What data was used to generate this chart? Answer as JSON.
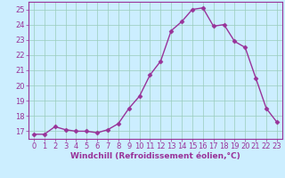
{
  "x": [
    0,
    1,
    2,
    3,
    4,
    5,
    6,
    7,
    8,
    9,
    10,
    11,
    12,
    13,
    14,
    15,
    16,
    17,
    18,
    19,
    20,
    21,
    22,
    23
  ],
  "y": [
    16.8,
    16.8,
    17.3,
    17.1,
    17.0,
    17.0,
    16.9,
    17.1,
    17.5,
    18.5,
    19.3,
    20.7,
    21.6,
    23.6,
    24.2,
    25.0,
    25.1,
    23.9,
    24.0,
    22.9,
    22.5,
    20.5,
    18.5,
    17.6
  ],
  "line_color": "#993399",
  "marker": "D",
  "markersize": 2.5,
  "linewidth": 1.0,
  "bg_color": "#cceeff",
  "grid_color": "#99ccbb",
  "xlabel": "Windchill (Refroidissement éolien,°C)",
  "xlim": [
    -0.5,
    23.5
  ],
  "ylim": [
    16.5,
    25.5
  ],
  "yticks": [
    17,
    18,
    19,
    20,
    21,
    22,
    23,
    24,
    25
  ],
  "xticks": [
    0,
    1,
    2,
    3,
    4,
    5,
    6,
    7,
    8,
    9,
    10,
    11,
    12,
    13,
    14,
    15,
    16,
    17,
    18,
    19,
    20,
    21,
    22,
    23
  ],
  "xlabel_fontsize": 6.5,
  "tick_fontsize": 6.0,
  "tick_color": "#993399",
  "axis_color": "#993399",
  "spine_color": "#993399"
}
